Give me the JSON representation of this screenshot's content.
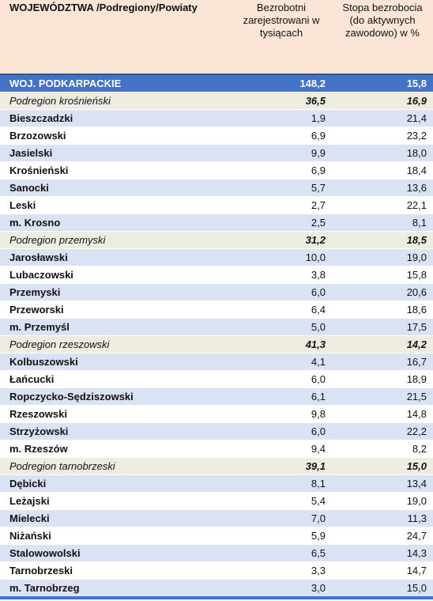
{
  "header": {
    "col1": "WOJEWÓDZTWA /Podregiony/Powiaty",
    "col2": "Bezrobotni zarejestrowani w tysiącach",
    "col3": "Stopa bezrobocia (do aktywnych zawodowo) w %"
  },
  "rows": [
    {
      "type": "total",
      "name": "WOJ. PODKARPACKIE",
      "registered": "148,2",
      "rate": "15,8"
    },
    {
      "type": "region",
      "name": "Podregion krośnieński",
      "registered": "36,5",
      "rate": "16,9"
    },
    {
      "type": "county",
      "name": "Bieszczadzki",
      "registered": "1,9",
      "rate": "21,4"
    },
    {
      "type": "county",
      "name": "Brzozowski",
      "registered": "6,9",
      "rate": "23,2"
    },
    {
      "type": "county",
      "name": "Jasielski",
      "registered": "9,9",
      "rate": "18,0"
    },
    {
      "type": "county",
      "name": "Krośnieński",
      "registered": "6,9",
      "rate": "18,4"
    },
    {
      "type": "county",
      "name": "Sanocki",
      "registered": "5,7",
      "rate": "13,6"
    },
    {
      "type": "county",
      "name": "Leski",
      "registered": "2,7",
      "rate": "22,1"
    },
    {
      "type": "county",
      "name": "m. Krosno",
      "registered": "2,5",
      "rate": "8,1"
    },
    {
      "type": "region",
      "name": "Podregion przemyski",
      "registered": "31,2",
      "rate": "18,5"
    },
    {
      "type": "county",
      "name": "Jarosławski",
      "registered": "10,0",
      "rate": "19,0"
    },
    {
      "type": "county",
      "name": "Lubaczowski",
      "registered": "3,8",
      "rate": "15,8"
    },
    {
      "type": "county",
      "name": "Przemyski",
      "registered": "6,0",
      "rate": "20,6"
    },
    {
      "type": "county",
      "name": "Przeworski",
      "registered": "6,4",
      "rate": "18,6"
    },
    {
      "type": "county",
      "name": "m. Przemyśl",
      "registered": "5,0",
      "rate": "17,5"
    },
    {
      "type": "region",
      "name": "Podregion rzeszowski",
      "registered": "41,3",
      "rate": "14,2"
    },
    {
      "type": "county",
      "name": "Kolbuszowski",
      "registered": "4,1",
      "rate": "16,7"
    },
    {
      "type": "county",
      "name": "Łańcucki",
      "registered": "6,0",
      "rate": "18,9"
    },
    {
      "type": "county",
      "name": "Ropczycko-Sędziszowski",
      "registered": "6,1",
      "rate": "21,5"
    },
    {
      "type": "county",
      "name": "Rzeszowski",
      "registered": "9,8",
      "rate": "14,8"
    },
    {
      "type": "county",
      "name": "Strzyżowski",
      "registered": "6,0",
      "rate": "22,2"
    },
    {
      "type": "county",
      "name": "m. Rzeszów",
      "registered": "9,4",
      "rate": "8,2"
    },
    {
      "type": "region",
      "name": "Podregion tarnobrzeski",
      "registered": "39,1",
      "rate": "15,0"
    },
    {
      "type": "county",
      "name": "Dębicki",
      "registered": "8,1",
      "rate": "13,4"
    },
    {
      "type": "county",
      "name": "Leżajski",
      "registered": "5,4",
      "rate": "19,0"
    },
    {
      "type": "county",
      "name": "Mielecki",
      "registered": "7,0",
      "rate": "11,3"
    },
    {
      "type": "county",
      "name": "Niżański",
      "registered": "5,9",
      "rate": "24,7"
    },
    {
      "type": "county",
      "name": "Stalowowolski",
      "registered": "6,5",
      "rate": "14,3"
    },
    {
      "type": "county",
      "name": "Tarnobrzeski",
      "registered": "3,3",
      "rate": "14,7"
    },
    {
      "type": "county",
      "name": "m. Tarnobrzeg",
      "registered": "3,0",
      "rate": "15,0"
    }
  ]
}
